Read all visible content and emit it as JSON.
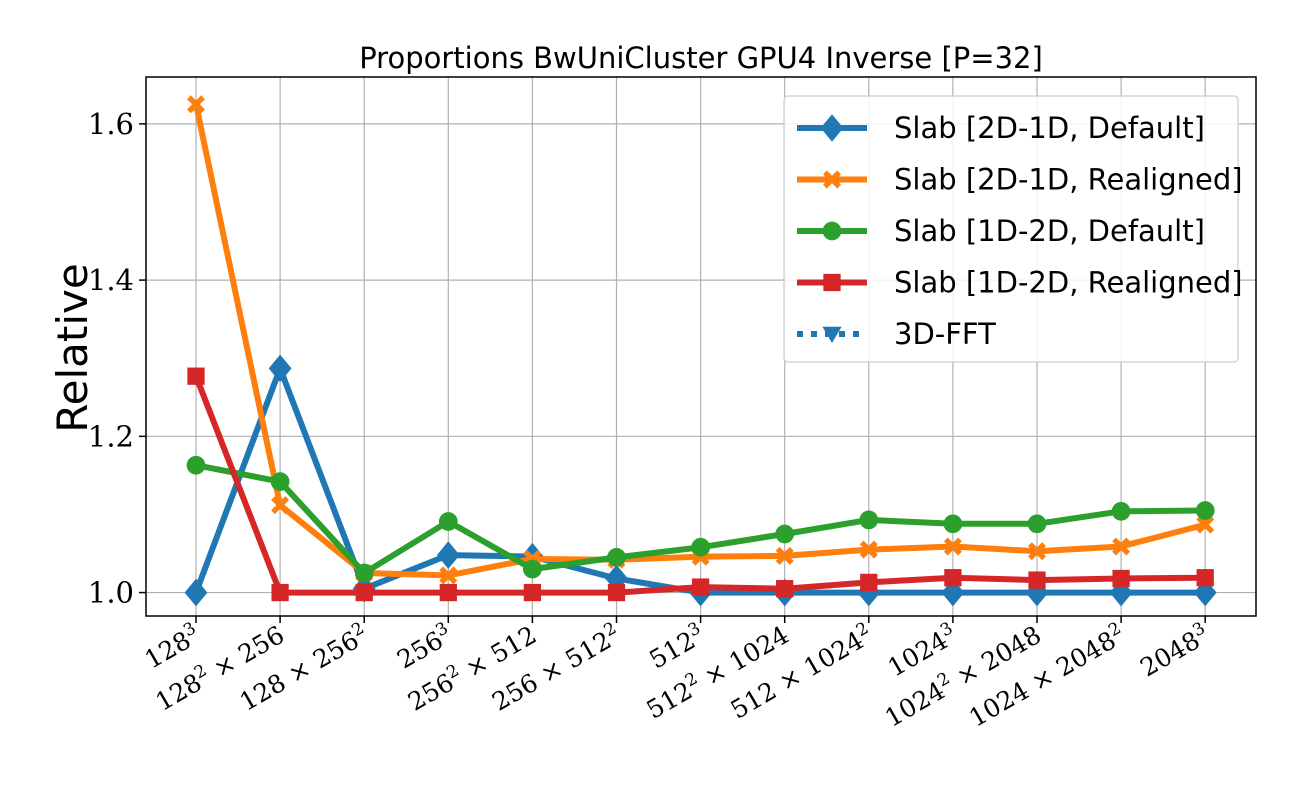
{
  "chart_data": {
    "type": "line",
    "title": "Proportions BwUniCluster GPU4 Inverse [P=32]",
    "xlabel": "",
    "ylabel": "Relative",
    "categories": [
      "128^3",
      "128^2 × 256",
      "128 × 256^2",
      "256^3",
      "256^2 × 512",
      "256 × 512^2",
      "512^3",
      "512^2 × 1024",
      "512 × 1024^2",
      "1024^3",
      "1024^2 × 2048",
      "1024 × 2048^2",
      "2048^3"
    ],
    "ylim": [
      0.97,
      1.66
    ],
    "yticks": [
      "1.0",
      "1.2",
      "1.4",
      "1.6"
    ],
    "grid": true,
    "legend_position": "top-right",
    "series": [
      {
        "name": "Slab [2D-1D, Default]",
        "color": "#1f77b4",
        "marker": "diamond",
        "linestyle": "solid",
        "values": [
          1.0,
          1.287,
          1.005,
          1.048,
          1.046,
          1.018,
          1.0,
          1.0,
          1.0,
          1.0,
          1.0,
          1.0,
          1.0
        ]
      },
      {
        "name": "Slab [2D-1D, Realigned]",
        "color": "#ff7f0e",
        "marker": "x",
        "linestyle": "solid",
        "values": [
          1.625,
          1.112,
          1.025,
          1.022,
          1.043,
          1.042,
          1.046,
          1.047,
          1.055,
          1.059,
          1.053,
          1.059,
          1.087
        ]
      },
      {
        "name": "Slab [1D-2D, Default]",
        "color": "#2ca02c",
        "marker": "circle",
        "linestyle": "solid",
        "values": [
          1.163,
          1.142,
          1.025,
          1.091,
          1.03,
          1.045,
          1.058,
          1.075,
          1.093,
          1.088,
          1.088,
          1.104,
          1.105
        ]
      },
      {
        "name": "Slab [1D-2D, Realigned]",
        "color": "#d62728",
        "marker": "square",
        "linestyle": "solid",
        "values": [
          1.277,
          1.0,
          1.0,
          1.0,
          1.0,
          1.0,
          1.007,
          1.005,
          1.013,
          1.019,
          1.016,
          1.018,
          1.019
        ]
      },
      {
        "name": "3D-FFT",
        "color": "#1f77b4",
        "marker": "triangle-down",
        "linestyle": "dotted",
        "values": [
          null,
          null,
          null,
          null,
          null,
          null,
          null,
          null,
          null,
          null,
          null,
          null,
          null
        ]
      }
    ]
  }
}
